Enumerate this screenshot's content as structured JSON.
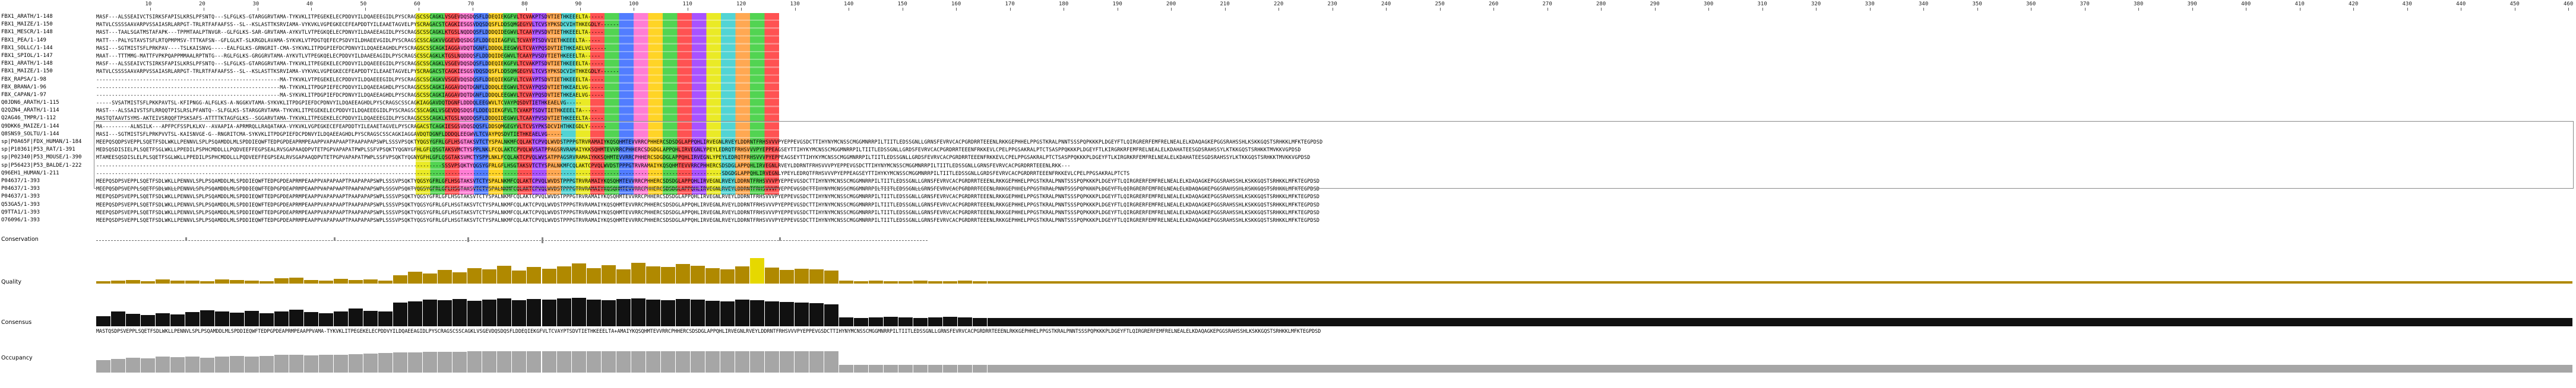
{
  "ruler": [
    "10",
    "20",
    "30",
    "40",
    "50",
    "60",
    "70",
    "80",
    "90",
    "100",
    "110",
    "120",
    "130",
    "140",
    "150",
    "160",
    "170",
    "180",
    "190",
    "200",
    "210",
    "220",
    "230",
    "240",
    "250",
    "260",
    "270",
    "280",
    "290",
    "300",
    "310",
    "320",
    "330",
    "340",
    "350",
    "360",
    "370",
    "380",
    "390",
    "400",
    "410",
    "420",
    "430",
    "440",
    "450",
    "460"
  ],
  "sequences": [
    {
      "name": "FBX1_ARATH/1-148",
      "seq": "MASF---ALSSEAIVCTSIRKSFAPISLKRSLPFSNTQ---SLFGLKS-GTARGGRVTAMA-TYKVKLITPEGEKELECPDDVYILDQAEEEGIDLPYSCRAGSCSSCAGKLVSGEVDQSDQSFLDDEQIEKGFVLTCVAKPTSDVTIETHKEEELTA-----"
    },
    {
      "name": "FBX1_MAIZE/1-150",
      "seq": "MATVLCSSSSAAVARPVSSAIASRLARPGT-TRLRTFAFAAFSS--SL--KSLASTTKSRVIAMA-VYKVKLVGPEGKECEFEAPDDTYILEAAETAGVELPYSCRAGACSTCAGKIESGSVDQSDQSFLDDSQMGEGYVLTCVSYPKSDCVIHTHKEGDLY------"
    },
    {
      "name": "FBX1_MESCR/1-148",
      "seq": "MAST---TAALSGATMSTAFAPK---TPPMTAALPTNVGR--GLFGLKS-SAR-GRVTAMA-AYKVTLVTPEGKQELECPDNVYILDAAEEAGIDLPYSCRAGSCSSCAGKLKTGSLNQDDQSFLDDDQIDEGWVLTCAAYPVSDVTIETHKEEELTA-----"
    },
    {
      "name": "FBX1_PEA/1-149",
      "seq": "MATT---PALYGTAVSTSFLRTQPMPMSV-TTTKAFSN--GFLGLKT-SLKRGDLAVAMA-SYKVKLVTPDGTQEFECPSDVYILDHAEEVGIDLPYSCRAGSCSSCAGKVVGGEVDQSDGSFLDDEQIEAGFVLTCVAYPTSDVVIETHKEEELTA-----"
    },
    {
      "name": "FBX1_SOLLC/1-144",
      "seq": "MASI---SGTMISTSFLPRKPAV----TSLKAISNVG-----EALFGLKS-GRNGRIT-CMA-SYKVKLITPDGPIEFDCPDNVYILDQAEEAGHDLPYSCRAGSCSSCAGKIAGGAVDQTDGNFLDDDQLEEGWVLTCVAYPQSDVTIETHKEAELVG-----"
    },
    {
      "name": "FBX1_SPIOL/1-147",
      "seq": "MAAT---TTTMMG-MATTFVPKPQAPPMMAALRPTNTG---RGLFGLKS-GRGGRVTAMA-AYKVTLVTPEGKQELECPDDVYILDAAEEAGIDLPYSCRAGSCSSCAGKLKTGSLNQDDQSFLDDDQIDEGWVLTCAAYPVSDVTIETHKEEELTA-----"
    },
    {
      "name": "FBX1_ARATH/1-148",
      "seq": "MASF---ALSSEAIVCTSIRKSFAPISLKRSLPFSNTQ---SLFGLKS-GTARGGRVTAMA-TYKVKLITPEGEKELECPDDVYILDQAEEEGIDLPYSCRAGSCSSCAGKLVSGEVDQSDQSFLDDEQIEKGFVLTCVAKPTSDVTIETHKEEELTA-----"
    },
    {
      "name": "FBX1_MAIZE/1-150",
      "seq": "MATVLCSSSSAAVARPVSSAIASRLARPGT-TRLRTFAFAAFSS--SL--KSLASTTKSRVIAMA-VYKVKLVGPEGKECEFEAPDDTYILEAAETAGVELPYSCRAGACSTCAGKIESGSVDQSDQSFLDDSQMGEGYVLTCVSYPKSDCVIHTHKEGDLY------"
    },
    {
      "name": "FBX_RAPSA/1-98",
      "seq": "-----------------------------------------------------------MA-TYKVKLVTPEGEKELECPDDVYILDQAEEEGIDLPYSCRAGSCSSCAGKVVSGEVDQSDQSFLDDEQIEKGFVLTCVAYPTSDVTIETHKEEELTA-----"
    },
    {
      "name": "FBX_BRANA/1-96",
      "seq": "-----------------------------------------------------------MA-TYKVKLITPDGPIEFECPDDVYILDQAEEAGHDLPYSCRAGSCSSCAGKIAGGAVDQTDGNFLDDDQLEEGWVLTCVAYPQSDVTIETHKEAELVG-----"
    },
    {
      "name": "FBX_CAPAN/1-97",
      "seq": "-----------------------------------------------------------MA-SYKVKLITPDGPIEFDCPDNVYILDQAEEAGHDLPYSCRAGSCSSCAGKIAGGAVDQTDGNFLDDDQLEEGWVLTCVAYPQSDVTIETHKEAELVG-----"
    },
    {
      "name": "Q0JDN6_ARATH/1-115",
      "seq": "-----SVSATMISTSFLPKKPAVTSL-KFIPNGG-ALFGLKS-A-NGGKVTAMA-SYKVKLITPDGPIEFDCPDNVYILDQAEEAGHDLPYSCRAGSCSSCAGKIAGGAVDQTDGNFLDDDQLEEGWVLTCVAYPQSDVTIETHKEAELVG-----"
    },
    {
      "name": "Q2QZN4_ARATH/1-114",
      "seq": "MAST---ALSSAIVSTSFLRRQQTPISLRSLPFANTQ--SLFGLKS-STARGGRVTAMA-TYKVKLITPEGEKELECPDDVYILDQAEEEGIDLPYSCRAGSCSSCAGKLVSGEVDQSDQSFLDDEQIEKGFVLTCVAKPTSDVTIETHKEEELTA-----"
    },
    {
      "name": "Q2AG46_TMPR/1-112",
      "seq": "MASTQTAAVTSYMS-AKTEIVSRQQFTPSKSAFS-ATTTTKTAGFGLKS--SGGARVTAMA-TYKVKLITPEGEKELECPDDVYILDQAEEEGIDLPYSCRAGSCSSCAGKLKTGSLNQDDQSFLDDDQIDEGWVLTCAAYPVSDVTIETHKEEELTA-----"
    },
    {
      "name": "Q9DKK6_MAIZE/1-144",
      "seq": "MA---------ALNSILK---APFPCFSSPLKLKV--AVAAPIA-APRMRQLLRAQATAKA-VYKVKLVGPEGKECEFEAPDDTYILEAAETAGVELPYSCRAGACSTCAGKIESGSVDQSDQSFLDDSQMGEGYVLTCVSYPKSDCVIHTHKEGDLY------"
    },
    {
      "name": "Q8SNS9_SOLTU/1-144",
      "seq": "MASI---SGTMISTSFLPRKPVVTSL-KAISNVGE-G--RNGRITCMA-SYKVKLITPDGPIEFDCPDNVYILDQAEEAGHDLPYSCRAGSCSSCAGKIAGGAVDQTDGNFLDDDQLEEGWVLTCVAYPQSDVTIETHKEAELVG-----"
    },
    {
      "name": "sp|P0A65F|FDX_HUMAN/1-184",
      "seq": "MEEPQSQDPSVEPPLSQETFSDLWKLLPENNVLSPLPSQAMDDLMLSPDDIEQWFTEDPGPDEAPRMPEAAPPVAPAPAAPTPAAPAPAPSWPLSSSVPSQKTYQGSYGFRLGFLHSGTAKSVTCTYSPALNKMFCQLAKTCPVQLWVDSTPPPGTRVRAMAIYKQSQHMTEVVRRCPHHERCSDSDGLAPPQHLIRVEGNLRVEYLDDRNTFRHSVVVPYEPPEVGSDCTTIHYNYMCNSSCMGGMNRRPILTIITLEDSSGNLLGRNSFEVRVCACPGRDRRTEEENLRKKGEPHHELPPGSTKRALPNNTSSSPQPKKKPLDGEYFTLQIRGRERFEMFRELNEALELKDAQAGKEPGGSRAHSSHLKSKKGQSTSRHKKLMFKTEGPDSD"
    },
    {
      "name": "sp|P10361|P53_RAT/1-391",
      "seq": "MEDSQSDISIELPLSQETFSGLWKLLPPEDILPSPHCMDDLLLPQDVEEFFEGPSEALRVSGAPAAQDPVTETPGPVAPAPATPWPLSSFVPSQKTYQGNYGFHLGFLQSGTAKSVMCTYSPPLNKLFCQLAKTCPVQLWVSATPPAGSRVRAMAIYKKSQHMTEVVRRCPHHERCSDGDGLAPPQHLIRVEGNLYPEYLEDRQTFRHSVVVPYEPPEAGSEYTTIHYKYMCNSSCMGGMNRRPILTIITLEDSSGNLLGRDSFEVRVCACPGRDRRTEEENFRKKEVLCPELPPGSAKRALPTCTSASPPQKKKPLDGEYFTLKIRGRKRFEMFRELNEALELKDAHATEESGDSRAHSSYLKTKKGQSTSRHKKTMVKKVGPDSD"
    },
    {
      "name": "sp|P02340|P53_MOUSE/1-390",
      "seq": "MTAMEESQSDISLELPLSQETFSGLWKLLPPEDILPSPHCMDDLLLPQDVEEFFEGPSEALRVSGAPAAQDPVTETPGPVAPAPATPWPLSSFVPSQKTYQGNYGFHLGFLQSGTAKSVMCTYSPPLNKLFCQLAKTCPVQLWVSATPPAGSRVRAMAIYKKSQHMTEVVRRCPHHERCSDGDGLAPPQHLIRVEGNLYPEYLEDRQTFRHSVVVPYEPPEAGSEYTTIHYKYMCNSSCMGGMNRRPILTIITLEDSSGNLLGRDSFEVRVCACPGRDRRTEEENFRKKEVLCPELPPGSAKRALPTCTSASPPQKKKPLDGEYFTLKIRGRKRFEMFRELNEALELKDAHATEESGDSRAHSSYLKTKKGQSTSRHKKTMVKKVGPDSD"
    },
    {
      "name": "sp|P56423|P53_BALDE/1-222",
      "seq": "---------------------------------------------------------------------------------------------------------------SSSVPSQKTYQGSYGFRLGFLHSGTAKSVTCTYSPALNKMFCQLAKTCPVQLWVDSTPPPGTRVRAMAIYKQSQHMTEVVRRCPHHERCSDSDGLAPPQHLIRVEGNLRVEYLDDRNTFRHSVVVPYEPPEVGSDCTTIHYNYMCNSSCMGGMNRRPILTIITLEDSSGNLLGRNSFEVRVCACPGRDRRTEEENLRKK---"
    },
    {
      "name": "Q96EH1_HUMAN/1-211",
      "seq": "---------------------------------------------------------------------------------------------------------------------------------------------------------------------------------------------------------SDGDGLAPPQHLIRVEGNLYPEYLEDRQTFRHSVVVPYEPPEAGSEYTTIHYKYMCNSSCMGGMNRRPILTIITLEDSSGNLLGRDSFEVRVCACPGRDRRTEEENFRKKEVLCPELPPGSAKRALPTCTS"
    },
    {
      "name": "P04637/1-393",
      "seq": "MEEPQSDPSVEPPLSQETFSDLWKLLPENNVLSPLPSQAMDDLMLSPDDIEQWFTEDPGPDEAPRMPEAAPPVAPAPAAPTPAAPAPAPSWPLSSSVPSQKTYQGSYGFRLGFLHSGTAKSVTCTYSPALNKMFCQLAKTCPVQLWVDSTPPPGTRVRAMAIYKQSQHMTEVVRRCPHHERCSDSDGLAPPQHLIRVEGNLRVEYLDDRNTFRHSVVVPYEPPEVGSDCTTIHYNYMCNSSCMGGMNRRPILTIITLEDSSGNLLGRNSFEVRVCACPGRDRRTEEENLRKKGEPHHELPPGSTKRALPNNTSSSPQPKKKPLDGEYFTLQIRGRERFEMFRELNEALELKDAQAGKEPGGSRAHSSHLKSKKGQSTSRHKKLMFKTEGPDSD"
    },
    {
      "name": "P04637/1-393",
      "seq": "MEEPQSDPSVEPPLSQETFSDLWKLLPENNVLSPLPSQAMDDLMLSPDDIEQWFTEDPGPDEAPRMPEAAPPVAPAPAAPTPAAPAPAPSWPLSSSVPSQKTYQGSYGFRLGFLHSGTAKSVTCTYSPALNKMFCQLAKTCPVQLWVDSTPPPGTRVRAMAIYKQSQHMTEVVRRCPHHERCSDSDGLAPPQHLIRVEGNLRVEYLDDRNTFRHSVVVPYEPPEVGSDCTTIHYNYMCNSSCMGGMNRRPILTIITLEDSSGNLLGRNSFEVRVCACPGRDRRTEEENLRKKGEPHHELPPGSTKRALPNNTSSSPQPKKKPLDGEYFTLQIRGRERFEMFRELNEALELKDAQAGKEPGGSRAHSSHLKSKKGQSTSRHKKLMFKTEGPDSD"
    },
    {
      "name": "P04637/1-393",
      "seq": "MEEPQSDPSVEPPLSQETFSDLWKLLPENNVLSPLPSQAMDDLMLSPDDIEQWFTEDPGPDEAPRMPEAAPPVAPAPAAPTPAAPAPAPSWPLSSSVPSQKTYQGSYGFRLGFLHSGTAKSVTCTYSPALNKMFCQLAKTCPVQLWVDSTPPPGTRVRAMAIYKQSQHMTEVVRRCPHHERCSDSDGLAPPQHLIRVEGNLRVEYLDDRNTFRHSVVVPYEPPEVGSDCTTIHYNYMCNSSCMGGMNRRPILTIITLEDSSGNLLGRNSFEVRVCACPGRDRRTEEENLRKKGEPHHELPPGSTKRALPNNTSSSPQPKKKPLDGEYFTLQIRGRERFEMFRELNEALELKDAQAGKEPGGSRAHSSHLKSKKGQSTSRHKKLMFKTEGPDSD"
    },
    {
      "name": "Q53GA5/1-393",
      "seq": "MEEPQSDPSVEPPLSQETFSDLWKLLPENNVLSPLPSQAMDDLMLSPDDIEQWFTEDPGPDEAPRMPEAAPPVAPAPAAPTPAAPAPAPSWPLSSSVPSQKTYQGSYGFRLGFLHSGTAKSVTCTYSPALNKMFCQLAKTCPVQLWVDSTPPPGTRVRAMAIYKQSQHMTEVVRRCPHHERCSDSDGLAPPQHLIRVEGNLRVEYLDDRNTFRHSVVVPYEPPEVGSDCTTIHYNYMCNSSCMGGMNRRPILTIITLEDSSGNLLGRNSFEVRVCACPGRDRRTEEENLRKKGEPHHELPPGSTKRALPNNTSSSPQPKKKPLDGEYFTLQIRGRERFEMFRELNEALELKDAQAGKEPGGSRAHSSHLKSKKGQSTSRHKKLMFKTEGPDSD"
    },
    {
      "name": "Q9TTA1/1-393",
      "seq": "MEEPQSDPSVEPPLSQETFSDLWKLLPENNVLSPLPSQAMDDLMLSPDDIEQWFTEDPGPDEAPRMPEAAPPVAPAPAAPTPAAPAPAPSWPLSSSVPSQKTYQGSYGFRLGFLHSGTAKSVTCTYSPALNKMFCQLAKTCPVQLWVDSTPPPGTRVRAMAIYKQSQHMTEVVRRCPHHERCSDSDGLAPPQHLIRVEGNLRVEYLDDRNTFRHSVVVPYEPPEVGSDCTTIHYNYMCNSSCMGGMNRRPILTIITLEDSSGNLLGRNSFEVRVCACPGRDRRTEEENLRKKGEPHHELPPGSTKRALPNNTSSSPQPKKKPLDGEYFTLQIRGRERFEMFRELNEALELKDAQAGKEPGGSRAHSSHLKSKKGQSTSRHKKLMFKTEGPDSD"
    },
    {
      "name": "O76096/1-393",
      "seq": "MEEPQSDPSVEPPLSQETFSDLWKLLPENNVLSPLPSQAMDDLMLSPDDIEQWFTEDPGPDEAPRMPEAAPPVAPAPAAPTPAAPAPAPSWPLSSSVPSQKTYQGSYGFRLGFLHSGTAKSVTCTYSPALNKMFCQLAKTCPVQLWVDSTPPPGTRVRAMAIYKQSQHMTEVVRRCPHHERCSDSDGLAPPQHLIRVEGNLRVEYLDDRNTFRHSVVVPYEPPEVGSDCTTIHYNYMCNSSCMGGMNRRPILTIITLEDSSGNLLGRNSFEVRVCACPGRDRRTEEENLRKKGEPHHELPPGSTKRALPNNTSSSPQPKKKPLDGEYFTLQIRGRERFEMFRELNEALELKDAQAGKEPGGSRAHSSHLKSKKGQSTSRHKKLMFKTEGPDSD"
    }
  ],
  "annotations": {
    "conservation_label": "Conservation",
    "quality_label": "Quality",
    "consensus_label": "Consensus",
    "occupancy_label": "Occupancy",
    "consensus_sequence": "MASTQSDPSVEPPLSQETFSDLWKLLPENNVLSPLPSQAMDDLMLSPDDIEQWFTEDPGPDEAPRMPEAAPPVAMA-TYKVKLITPEGEKELECPDDVYILDQAEEAGIDLPYSCRAGSCSSCAGKLVSGEVDQSDQSFLDDEQIEKGFVLTCVAYPTSDVTIETHKEEELTA+AMAIYKQSQHMTEVVRRCPHHERCSDSDGLAPPQHLIRVEGNLRVEYLDDRNTFRHSVVVPYEPPEVGSDCTTIHYNYMCNSSCMGGMNRRPILTIITLEDSSGNLLGRNSFEVRVCACPGRDRRTEEENLRKKGEPHHELPPGSTKRALPNNTSSSPQPKKKPLDGEYFTLQIRGRERFEMFRELNEALELKDAQAGKEPGGSRAHSSHLKSKKGQSTSRHKKLMFKTEGPDSD"
  },
  "tracks": {
    "conservation": [
      0,
      0,
      0,
      0,
      0,
      0,
      1,
      0,
      0,
      0,
      0,
      0,
      0,
      0,
      0,
      0,
      1,
      0,
      0,
      0,
      0,
      0,
      0,
      0,
      0,
      2,
      0,
      0,
      0,
      0,
      3,
      0,
      0,
      0,
      0,
      0,
      0,
      0,
      0,
      0,
      0,
      0,
      0,
      0,
      0,
      0,
      1,
      0,
      0,
      0,
      0,
      0,
      0,
      0,
      0,
      0,
      0,
      0,
      0,
      0
    ],
    "quality": [
      0.08,
      0.1,
      0.12,
      0.09,
      0.15,
      0.1,
      0.11,
      0.08,
      0.14,
      0.12,
      0.1,
      0.09,
      0.18,
      0.2,
      0.12,
      0.1,
      0.16,
      0.12,
      0.14,
      0.11,
      0.3,
      0.42,
      0.35,
      0.48,
      0.4,
      0.55,
      0.5,
      0.62,
      0.45,
      0.58,
      0.52,
      0.6,
      0.7,
      0.55,
      0.65,
      0.5,
      0.72,
      0.6,
      0.58,
      0.68,
      0.62,
      0.55,
      0.5,
      0.6,
      0.9,
      0.56,
      0.48,
      0.52,
      0.5,
      0.45,
      0.1,
      0.08,
      0.1,
      0.09,
      0.08,
      0.1,
      0.09,
      0.08,
      0.1,
      0.09
    ],
    "consensus": [
      0.35,
      0.5,
      0.42,
      0.38,
      0.45,
      0.4,
      0.48,
      0.55,
      0.5,
      0.46,
      0.52,
      0.44,
      0.5,
      0.56,
      0.48,
      0.45,
      0.5,
      0.6,
      0.52,
      0.5,
      0.8,
      0.85,
      0.9,
      0.88,
      0.92,
      0.86,
      0.9,
      0.95,
      0.88,
      0.92,
      0.9,
      0.94,
      0.96,
      0.9,
      0.88,
      0.92,
      0.95,
      0.9,
      0.88,
      0.93,
      0.9,
      0.87,
      0.85,
      0.9,
      0.88,
      0.85,
      0.82,
      0.8,
      0.78,
      0.75,
      0.3,
      0.28,
      0.3,
      0.32,
      0.3,
      0.28,
      0.3,
      0.32,
      0.3,
      0.28
    ],
    "occupancy": [
      0.55,
      0.6,
      0.65,
      0.62,
      0.7,
      0.68,
      0.72,
      0.65,
      0.7,
      0.74,
      0.72,
      0.75,
      0.78,
      0.8,
      0.76,
      0.78,
      0.8,
      0.82,
      0.84,
      0.86,
      0.9,
      0.9,
      0.92,
      0.92,
      0.93,
      0.94,
      0.94,
      0.95,
      0.95,
      0.95,
      0.95,
      0.95,
      0.95,
      0.95,
      0.95,
      0.95,
      0.95,
      0.95,
      0.95,
      0.95,
      0.95,
      0.95,
      0.95,
      0.95,
      0.95,
      0.95,
      0.95,
      0.95,
      0.95,
      0.95,
      0.35,
      0.35,
      0.35,
      0.35,
      0.35,
      0.35,
      0.35,
      0.35,
      0.35,
      0.35
    ]
  },
  "colors": {
    "quality_bar": "#b08900",
    "quality_peak": "#e6d800",
    "consensus_bar": "#111111",
    "occupancy_bar": "#a6a6a6"
  }
}
